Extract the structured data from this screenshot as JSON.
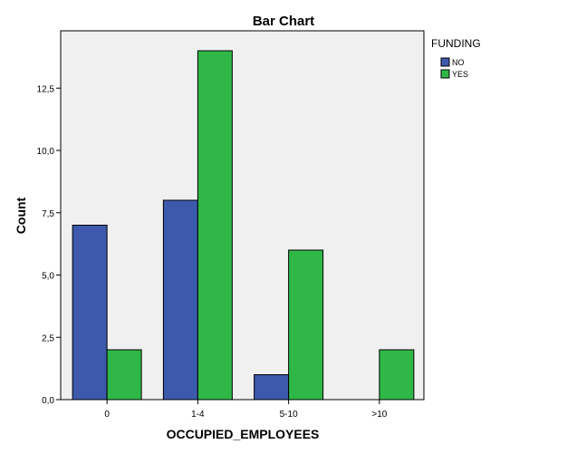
{
  "chart_data": {
    "type": "bar",
    "title": "Bar Chart",
    "xlabel": "OCCUPIED_EMPLOYEES",
    "ylabel": "Count",
    "categories": [
      "0",
      "1-4",
      "5-10",
      ">10"
    ],
    "series": [
      {
        "name": "NO",
        "values": [
          7,
          8,
          1,
          null
        ],
        "color": "#3c59ab"
      },
      {
        "name": "YES",
        "values": [
          2,
          14,
          6,
          2
        ],
        "color": "#2fb848"
      }
    ],
    "ylim": [
      0,
      14.8
    ],
    "yticks": [
      0,
      2.5,
      5,
      7.5,
      10,
      12.5
    ],
    "ytick_labels": [
      "0,0",
      "2,5",
      "5,0",
      "7,5",
      "10,0",
      "12,5"
    ],
    "legend": {
      "title": "FUNDING",
      "placement": "right"
    },
    "grid": false,
    "plot_background": "#f0f0f0"
  }
}
